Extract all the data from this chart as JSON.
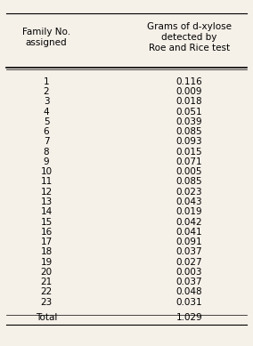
{
  "col1_header": "Family No.\nassigned",
  "col2_header": "Grams of d-xylose\ndetected by\nRoe and Rice test",
  "rows": [
    [
      "1",
      "0.116"
    ],
    [
      "2",
      "0.009"
    ],
    [
      "3",
      "0.018"
    ],
    [
      "4",
      "0.051"
    ],
    [
      "5",
      "0.039"
    ],
    [
      "6",
      "0.085"
    ],
    [
      "7",
      "0.093"
    ],
    [
      "8",
      "0.015"
    ],
    [
      "9",
      "0.071"
    ],
    [
      "10",
      "0.005"
    ],
    [
      "11",
      "0.085"
    ],
    [
      "12",
      "0.023"
    ],
    [
      "13",
      "0.043"
    ],
    [
      "14",
      "0.019"
    ],
    [
      "15",
      "0.042"
    ],
    [
      "16",
      "0.041"
    ],
    [
      "17",
      "0.091"
    ],
    [
      "18",
      "0.037"
    ],
    [
      "19",
      "0.027"
    ],
    [
      "20",
      "0.003"
    ],
    [
      "21",
      "0.037"
    ],
    [
      "22",
      "0.048"
    ],
    [
      "23",
      "0.031"
    ]
  ],
  "total_label": "Total",
  "total_value": "1.029",
  "background_color": "#f5f0e8",
  "text_color": "#000000",
  "font_size": 7.5,
  "header_font_size": 7.5
}
